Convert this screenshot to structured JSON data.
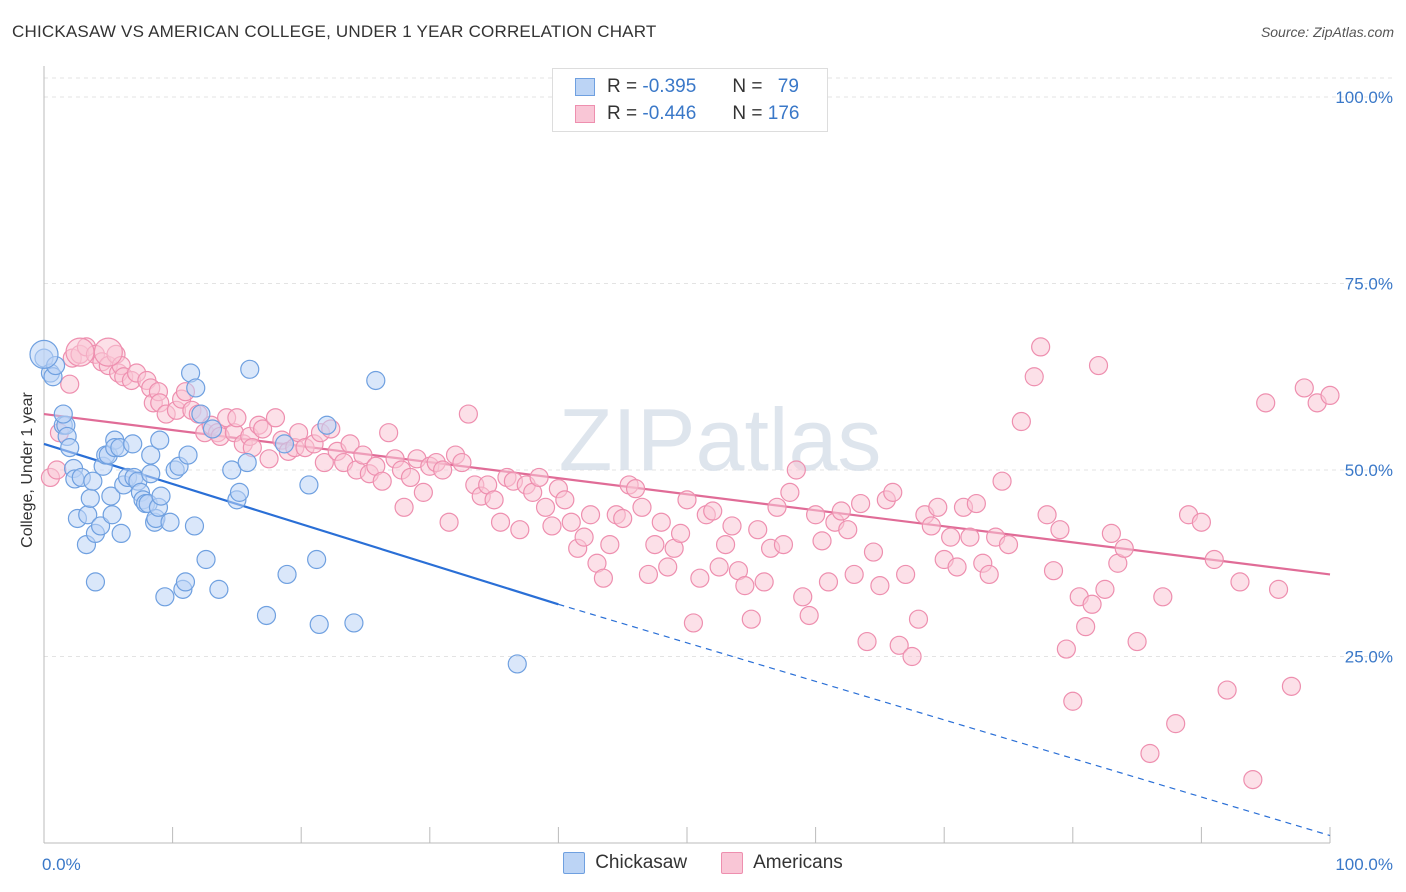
{
  "chart_data": {
    "type": "scatter",
    "title": "CHICKASAW VS AMERICAN COLLEGE, UNDER 1 YEAR CORRELATION CHART",
    "source": "Source: ZipAtlas.com",
    "xlabel": "",
    "ylabel": "College, Under 1 year",
    "xlim": [
      0,
      100
    ],
    "ylim": [
      0,
      100
    ],
    "x_tick_labels": [
      "0.0%",
      "100.0%"
    ],
    "y_tick_labels": [
      {
        "value": 100,
        "label": "100.0%"
      },
      {
        "value": 75,
        "label": "75.0%"
      },
      {
        "value": 50,
        "label": "50.0%"
      },
      {
        "value": 25,
        "label": "25.0%"
      }
    ],
    "watermark": "ZIPatlas",
    "legend": [
      {
        "name": "Chickasaw",
        "r_label": "R =",
        "r": "-0.395",
        "n_label": "N =",
        "n": "79",
        "color": "#6fa0e0",
        "fill": "#bcd4f5"
      },
      {
        "name": "Americans",
        "r_label": "R =",
        "r": "-0.446",
        "n_label": "N =",
        "n": "176",
        "color": "#ee8faf",
        "fill": "#f9c6d6"
      }
    ],
    "series": [
      {
        "name": "Chickasaw",
        "color": "#6fa0e0",
        "fill": "#bcd4f5",
        "trend": {
          "x0": 0,
          "y0": 53.5,
          "x1": 40,
          "y1": 32.0,
          "dash_to_x": 100,
          "dash_to_y": 1.0,
          "color": "#2a6fd6"
        },
        "points": [
          [
            0,
            65
          ],
          [
            0.5,
            63
          ],
          [
            0.7,
            62.5
          ],
          [
            0.9,
            64
          ],
          [
            1.5,
            56
          ],
          [
            1.7,
            56
          ],
          [
            1.5,
            57.5
          ],
          [
            1.8,
            54.5
          ],
          [
            2,
            53
          ],
          [
            2.3,
            50.2
          ],
          [
            2.4,
            48.8
          ],
          [
            2.6,
            43.5
          ],
          [
            2.9,
            49
          ],
          [
            3.3,
            40
          ],
          [
            3.4,
            44
          ],
          [
            3.6,
            46.2
          ],
          [
            3.8,
            48.5
          ],
          [
            4,
            35
          ],
          [
            4,
            41.5
          ],
          [
            4.4,
            42.5
          ],
          [
            4.6,
            50.5
          ],
          [
            4.8,
            52
          ],
          [
            5,
            52
          ],
          [
            5.2,
            46.5
          ],
          [
            5.3,
            44
          ],
          [
            5.5,
            54
          ],
          [
            5.5,
            53
          ],
          [
            5.9,
            53
          ],
          [
            6.0,
            41.5
          ],
          [
            6.2,
            48
          ],
          [
            6.5,
            49
          ],
          [
            6.9,
            53.5
          ],
          [
            7.0,
            49
          ],
          [
            7.3,
            48.5
          ],
          [
            7.5,
            47
          ],
          [
            7.7,
            46
          ],
          [
            7.9,
            45.5
          ],
          [
            8.1,
            45.5
          ],
          [
            8.3,
            49.5
          ],
          [
            8.3,
            52
          ],
          [
            8.6,
            43
          ],
          [
            8.7,
            43.5
          ],
          [
            8.9,
            45
          ],
          [
            9.1,
            46.5
          ],
          [
            9.0,
            54
          ],
          [
            9.4,
            33
          ],
          [
            9.8,
            43
          ],
          [
            10.2,
            50
          ],
          [
            10.5,
            50.5
          ],
          [
            10.8,
            34
          ],
          [
            11,
            35
          ],
          [
            11.2,
            52
          ],
          [
            11.4,
            63
          ],
          [
            11.7,
            42.5
          ],
          [
            11.8,
            61
          ],
          [
            12.2,
            57.5
          ],
          [
            12.6,
            38
          ],
          [
            13.1,
            55.5
          ],
          [
            13.6,
            34
          ],
          [
            14.6,
            50
          ],
          [
            15,
            46
          ],
          [
            15.2,
            47
          ],
          [
            15.8,
            51
          ],
          [
            16,
            63.5
          ],
          [
            17.3,
            30.5
          ],
          [
            18.7,
            53.5
          ],
          [
            18.9,
            36
          ],
          [
            20.6,
            48
          ],
          [
            21.2,
            38
          ],
          [
            21.4,
            29.3
          ],
          [
            22,
            56
          ],
          [
            24.1,
            29.5
          ],
          [
            25.8,
            62
          ],
          [
            36.8,
            24
          ]
        ],
        "big_points": [
          [
            0,
            65.5
          ]
        ]
      },
      {
        "name": "Americans",
        "color": "#ee8faf",
        "fill": "#f9c6d6",
        "trend": {
          "x0": 0,
          "y0": 57.5,
          "x1": 100,
          "y1": 36.0,
          "color": "#e06c97"
        },
        "points": [
          [
            0.5,
            49
          ],
          [
            1,
            50
          ],
          [
            1.2,
            55
          ],
          [
            2,
            61.5
          ],
          [
            2.2,
            65
          ],
          [
            2.8,
            65.5
          ],
          [
            3.3,
            66.5
          ],
          [
            4,
            65.5
          ],
          [
            4.5,
            64.5
          ],
          [
            5,
            64
          ],
          [
            5.6,
            65.5
          ],
          [
            5.8,
            63
          ],
          [
            6,
            64
          ],
          [
            6.2,
            62.5
          ],
          [
            6.8,
            62
          ],
          [
            7.2,
            63
          ],
          [
            8,
            62
          ],
          [
            8.3,
            61
          ],
          [
            8.5,
            59
          ],
          [
            8.9,
            60.5
          ],
          [
            9,
            59
          ],
          [
            9.5,
            57.5
          ],
          [
            10.3,
            58
          ],
          [
            10.7,
            59.5
          ],
          [
            11,
            60.5
          ],
          [
            11.5,
            58
          ],
          [
            12,
            57.5
          ],
          [
            12.5,
            55
          ],
          [
            13,
            56
          ],
          [
            13.5,
            55
          ],
          [
            13.7,
            54.5
          ],
          [
            14.2,
            57
          ],
          [
            14.8,
            55
          ],
          [
            15,
            57
          ],
          [
            15.5,
            53.5
          ],
          [
            16,
            54.5
          ],
          [
            16.2,
            53
          ],
          [
            16.7,
            56
          ],
          [
            17,
            55.5
          ],
          [
            17.5,
            51.5
          ],
          [
            18,
            57
          ],
          [
            18.5,
            54
          ],
          [
            19,
            52.5
          ],
          [
            19.5,
            53
          ],
          [
            19.8,
            55
          ],
          [
            20.3,
            53
          ],
          [
            21,
            53.5
          ],
          [
            21.5,
            55
          ],
          [
            21.8,
            51
          ],
          [
            22.3,
            55.5
          ],
          [
            22.8,
            52.5
          ],
          [
            23.3,
            51
          ],
          [
            23.8,
            53.5
          ],
          [
            24.3,
            50
          ],
          [
            24.8,
            52
          ],
          [
            25.3,
            49.5
          ],
          [
            25.8,
            50.5
          ],
          [
            26.3,
            48.5
          ],
          [
            26.8,
            55
          ],
          [
            27.3,
            51.5
          ],
          [
            27.8,
            50
          ],
          [
            28,
            45
          ],
          [
            28.5,
            49
          ],
          [
            29,
            51.5
          ],
          [
            29.5,
            47
          ],
          [
            30,
            50.5
          ],
          [
            30.5,
            51
          ],
          [
            31,
            50
          ],
          [
            31.5,
            43
          ],
          [
            32,
            52
          ],
          [
            32.5,
            51
          ],
          [
            33,
            57.5
          ],
          [
            33.5,
            48
          ],
          [
            34,
            46.5
          ],
          [
            34.5,
            48
          ],
          [
            35,
            46
          ],
          [
            35.5,
            43
          ],
          [
            36,
            49
          ],
          [
            36.5,
            48.5
          ],
          [
            37,
            42
          ],
          [
            37.5,
            48
          ],
          [
            38,
            47
          ],
          [
            38.5,
            49
          ],
          [
            39,
            45
          ],
          [
            39.5,
            42.5
          ],
          [
            40,
            47.5
          ],
          [
            40.5,
            46
          ],
          [
            41,
            43
          ],
          [
            41.5,
            39.5
          ],
          [
            42,
            41
          ],
          [
            42.5,
            44
          ],
          [
            43,
            37.5
          ],
          [
            43.5,
            35.5
          ],
          [
            44,
            40
          ],
          [
            44.5,
            44
          ],
          [
            45,
            43.5
          ],
          [
            45.5,
            48
          ],
          [
            46,
            47.5
          ],
          [
            46.5,
            45
          ],
          [
            47,
            36
          ],
          [
            47.5,
            40
          ],
          [
            48,
            43
          ],
          [
            48.5,
            37
          ],
          [
            49,
            39.5
          ],
          [
            49.5,
            41.5
          ],
          [
            50,
            46
          ],
          [
            50.5,
            29.5
          ],
          [
            51,
            35.5
          ],
          [
            51.5,
            44
          ],
          [
            52,
            44.5
          ],
          [
            52.5,
            37
          ],
          [
            53,
            40
          ],
          [
            53.5,
            42.5
          ],
          [
            54,
            36.5
          ],
          [
            54.5,
            34.5
          ],
          [
            55,
            30
          ],
          [
            55.5,
            42
          ],
          [
            56,
            35
          ],
          [
            56.5,
            39.5
          ],
          [
            57,
            45
          ],
          [
            57.5,
            40
          ],
          [
            58,
            47
          ],
          [
            58.5,
            50
          ],
          [
            59,
            33
          ],
          [
            59.5,
            30.5
          ],
          [
            60,
            44
          ],
          [
            60.5,
            40.5
          ],
          [
            61,
            35
          ],
          [
            61.5,
            43
          ],
          [
            62,
            44.5
          ],
          [
            62.5,
            42
          ],
          [
            63,
            36
          ],
          [
            63.5,
            45.5
          ],
          [
            64,
            27
          ],
          [
            64.5,
            39
          ],
          [
            65,
            34.5
          ],
          [
            65.5,
            46
          ],
          [
            66,
            47
          ],
          [
            66.5,
            26.5
          ],
          [
            67,
            36
          ],
          [
            67.5,
            25
          ],
          [
            68,
            30
          ],
          [
            68.5,
            44
          ],
          [
            69,
            42.5
          ],
          [
            69.5,
            45
          ],
          [
            70,
            38
          ],
          [
            70.5,
            41
          ],
          [
            71,
            37
          ],
          [
            71.5,
            45
          ],
          [
            72,
            41
          ],
          [
            72.5,
            45.5
          ],
          [
            73,
            37.5
          ],
          [
            73.5,
            36
          ],
          [
            74,
            41
          ],
          [
            74.5,
            48.5
          ],
          [
            75,
            40
          ],
          [
            76,
            56.5
          ],
          [
            77,
            62.5
          ],
          [
            77.5,
            66.5
          ],
          [
            78,
            44
          ],
          [
            78.5,
            36.5
          ],
          [
            79,
            42
          ],
          [
            79.5,
            26
          ],
          [
            80,
            19
          ],
          [
            80.5,
            33
          ],
          [
            81,
            29
          ],
          [
            81.5,
            32
          ],
          [
            82,
            64
          ],
          [
            82.5,
            34
          ],
          [
            83,
            41.5
          ],
          [
            83.5,
            37.5
          ],
          [
            84,
            39.5
          ],
          [
            85,
            27
          ],
          [
            86,
            12
          ],
          [
            87,
            33
          ],
          [
            88,
            16
          ],
          [
            89,
            44
          ],
          [
            90,
            43
          ],
          [
            91,
            38
          ],
          [
            92,
            20.5
          ],
          [
            93,
            35
          ],
          [
            94,
            8.5
          ],
          [
            95,
            59
          ],
          [
            96,
            34
          ],
          [
            97,
            21
          ],
          [
            98,
            61
          ],
          [
            99,
            59
          ],
          [
            100,
            60
          ]
        ],
        "big_points": [
          [
            2.8,
            65.8
          ],
          [
            5.0,
            65.8
          ]
        ]
      }
    ]
  }
}
